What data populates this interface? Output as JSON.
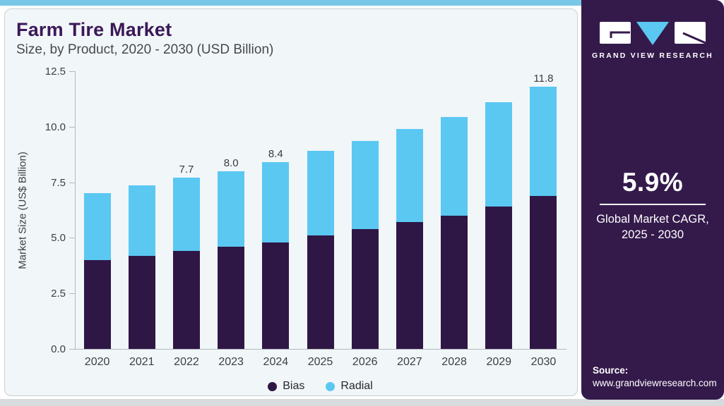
{
  "header": {
    "title": "Farm Tire Market",
    "subtitle": "Size, by Product, 2020 - 2030 (USD Billion)"
  },
  "chart_data": {
    "type": "bar",
    "stacked": true,
    "title": "Farm Tire Market Size, by Product, 2020 - 2030 (USD Billion)",
    "categories": [
      "2020",
      "2021",
      "2022",
      "2023",
      "2024",
      "2025",
      "2026",
      "2027",
      "2028",
      "2029",
      "2030"
    ],
    "series": [
      {
        "name": "Bias",
        "color": "#2F1745",
        "values": [
          4.0,
          4.2,
          4.4,
          4.6,
          4.8,
          5.1,
          5.4,
          5.7,
          6.0,
          6.4,
          6.9
        ]
      },
      {
        "name": "Radial",
        "color": "#5BC8F2",
        "values": [
          3.0,
          3.15,
          3.3,
          3.4,
          3.6,
          3.8,
          3.95,
          4.2,
          4.45,
          4.7,
          4.9
        ]
      }
    ],
    "totals": [
      7.0,
      7.35,
      7.7,
      8.0,
      8.4,
      8.9,
      9.35,
      9.9,
      10.45,
      11.1,
      11.8
    ],
    "total_labels": [
      "",
      "",
      "7.7",
      "8.0",
      "8.4",
      "",
      "",
      "",
      "",
      "",
      "11.8"
    ],
    "xlabel": "",
    "ylabel": "Market Size (US$ Billion)",
    "ylim": [
      0,
      12.5
    ],
    "yticks": [
      0.0,
      2.5,
      5.0,
      7.5,
      10.0,
      12.5
    ],
    "ytick_labels": [
      "0.0",
      "2.5",
      "5.0",
      "7.5",
      "10.0",
      "12.5"
    ],
    "grid": false,
    "legend_position": "bottom"
  },
  "sidebar": {
    "brand_name": "GRAND VIEW RESEARCH",
    "cagr_value": "5.9%",
    "cagr_label_line1": "Global Market CAGR,",
    "cagr_label_line2": "2025 - 2030",
    "source_label": "Source:",
    "source_url": "www.grandviewresearch.com"
  },
  "colors": {
    "bias": "#2F1745",
    "radial": "#5BC8F2",
    "title_purple": "#3B1857",
    "sidebar_bg": "#341A4B",
    "top_strip": "#79C7E8",
    "card_bg": "#F1F6F9"
  }
}
